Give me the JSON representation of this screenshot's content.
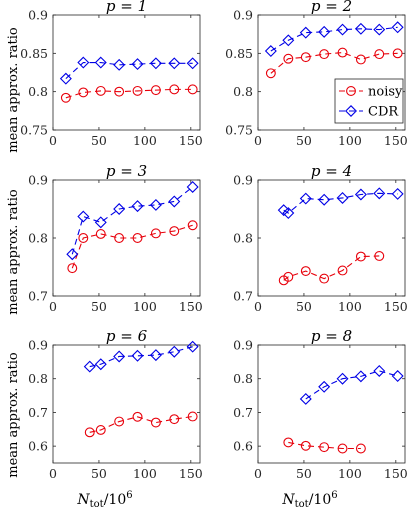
{
  "figure": {
    "ylabel": "mean approx. ratio",
    "xlabel_main": "N",
    "xlabel_sub": "tot",
    "xlabel_rest": "/10",
    "xlabel_sup": "6"
  },
  "chart_data": [
    {
      "type": "line",
      "title": "p = 1",
      "xlim": [
        0,
        160
      ],
      "ylim": [
        0.75,
        0.9
      ],
      "xticks": [
        0,
        50,
        100,
        150
      ],
      "yticks": [
        0.75,
        0.8,
        0.85,
        0.9
      ],
      "ytick_labels": [
        "0.75",
        "0.8",
        "0.85",
        "0.9"
      ],
      "series": [
        {
          "name": "noisy",
          "color": "#e8000b",
          "marker": "circle",
          "x": [
            14,
            33,
            52,
            72,
            92,
            112,
            132,
            152
          ],
          "y": [
            0.792,
            0.799,
            0.801,
            0.8,
            0.801,
            0.802,
            0.803,
            0.803
          ]
        },
        {
          "name": "CDR",
          "color": "#0000e6",
          "marker": "diamond",
          "x": [
            14,
            33,
            52,
            72,
            92,
            112,
            132,
            152
          ],
          "y": [
            0.817,
            0.838,
            0.838,
            0.835,
            0.836,
            0.837,
            0.837,
            0.837
          ]
        }
      ]
    },
    {
      "type": "line",
      "title": "p = 2",
      "xlim": [
        0,
        160
      ],
      "ylim": [
        0.75,
        0.9
      ],
      "xticks": [
        0,
        50,
        100,
        150
      ],
      "yticks": [
        0.75,
        0.8,
        0.85,
        0.9
      ],
      "ytick_labels": [
        "0.75",
        "0.8",
        "0.85",
        "0.9"
      ],
      "legend": {
        "position": "center-right",
        "entries": [
          "noisy",
          "CDR"
        ]
      },
      "series": [
        {
          "name": "noisy",
          "color": "#e8000b",
          "marker": "circle",
          "x": [
            14,
            33,
            52,
            72,
            92,
            112,
            132,
            152
          ],
          "y": [
            0.824,
            0.843,
            0.845,
            0.849,
            0.851,
            0.842,
            0.849,
            0.85
          ]
        },
        {
          "name": "CDR",
          "color": "#0000e6",
          "marker": "diamond",
          "x": [
            14,
            33,
            52,
            72,
            92,
            112,
            132,
            152
          ],
          "y": [
            0.853,
            0.867,
            0.877,
            0.878,
            0.881,
            0.882,
            0.881,
            0.884
          ]
        }
      ]
    },
    {
      "type": "line",
      "title": "p = 3",
      "xlim": [
        0,
        160
      ],
      "ylim": [
        0.7,
        0.9
      ],
      "xticks": [
        0,
        50,
        100,
        150
      ],
      "yticks": [
        0.7,
        0.8,
        0.9
      ],
      "ytick_labels": [
        "0.7",
        "0.8",
        "0.9"
      ],
      "series": [
        {
          "name": "noisy",
          "color": "#e8000b",
          "marker": "circle",
          "x": [
            21,
            33,
            52,
            72,
            92,
            112,
            132,
            152
          ],
          "y": [
            0.748,
            0.8,
            0.807,
            0.8,
            0.8,
            0.808,
            0.812,
            0.822
          ]
        },
        {
          "name": "CDR",
          "color": "#0000e6",
          "marker": "diamond",
          "x": [
            21,
            33,
            52,
            72,
            92,
            112,
            132,
            152
          ],
          "y": [
            0.772,
            0.837,
            0.827,
            0.85,
            0.855,
            0.857,
            0.863,
            0.888
          ]
        }
      ]
    },
    {
      "type": "line",
      "title": "p = 4",
      "xlim": [
        0,
        160
      ],
      "ylim": [
        0.7,
        0.9
      ],
      "xticks": [
        0,
        50,
        100,
        150
      ],
      "yticks": [
        0.7,
        0.8,
        0.9
      ],
      "ytick_labels": [
        "0.7",
        "0.8",
        "0.9"
      ],
      "series": [
        {
          "name": "noisy",
          "color": "#e8000b",
          "marker": "circle",
          "x": [
            28,
            33,
            52,
            72,
            92,
            112,
            132
          ],
          "y": [
            0.727,
            0.733,
            0.743,
            0.73,
            0.744,
            0.768,
            0.769
          ]
        },
        {
          "name": "CDR",
          "color": "#0000e6",
          "marker": "diamond",
          "x": [
            28,
            33,
            52,
            72,
            92,
            112,
            132,
            152
          ],
          "y": [
            0.848,
            0.843,
            0.868,
            0.866,
            0.869,
            0.875,
            0.877,
            0.876
          ]
        }
      ]
    },
    {
      "type": "line",
      "title": "p = 6",
      "xlim": [
        0,
        160
      ],
      "ylim": [
        0.55,
        0.9
      ],
      "xticks": [
        0,
        50,
        100,
        150
      ],
      "yticks": [
        0.6,
        0.7,
        0.8,
        0.9
      ],
      "ytick_labels": [
        "0.6",
        "0.7",
        "0.8",
        "0.9"
      ],
      "series": [
        {
          "name": "noisy",
          "color": "#e8000b",
          "marker": "circle",
          "x": [
            40,
            52,
            72,
            92,
            112,
            132,
            152
          ],
          "y": [
            0.641,
            0.648,
            0.673,
            0.687,
            0.67,
            0.68,
            0.688
          ]
        },
        {
          "name": "CDR",
          "color": "#0000e6",
          "marker": "diamond",
          "x": [
            40,
            52,
            72,
            92,
            112,
            132,
            152
          ],
          "y": [
            0.836,
            0.843,
            0.866,
            0.868,
            0.87,
            0.88,
            0.895
          ]
        }
      ]
    },
    {
      "type": "line",
      "title": "p = 8",
      "xlim": [
        0,
        160
      ],
      "ylim": [
        0.55,
        0.9
      ],
      "xticks": [
        0,
        50,
        100,
        150
      ],
      "yticks": [
        0.6,
        0.7,
        0.8,
        0.9
      ],
      "ytick_labels": [
        "0.6",
        "0.7",
        "0.8",
        "0.9"
      ],
      "series": [
        {
          "name": "noisy",
          "color": "#e8000b",
          "marker": "circle",
          "x": [
            33,
            52,
            72,
            92,
            112
          ],
          "y": [
            0.611,
            0.601,
            0.597,
            0.593,
            0.593
          ]
        },
        {
          "name": "CDR",
          "color": "#0000e6",
          "marker": "diamond",
          "x": [
            52,
            72,
            92,
            112,
            132,
            152
          ],
          "y": [
            0.74,
            0.776,
            0.8,
            0.807,
            0.823,
            0.808
          ]
        }
      ]
    }
  ]
}
